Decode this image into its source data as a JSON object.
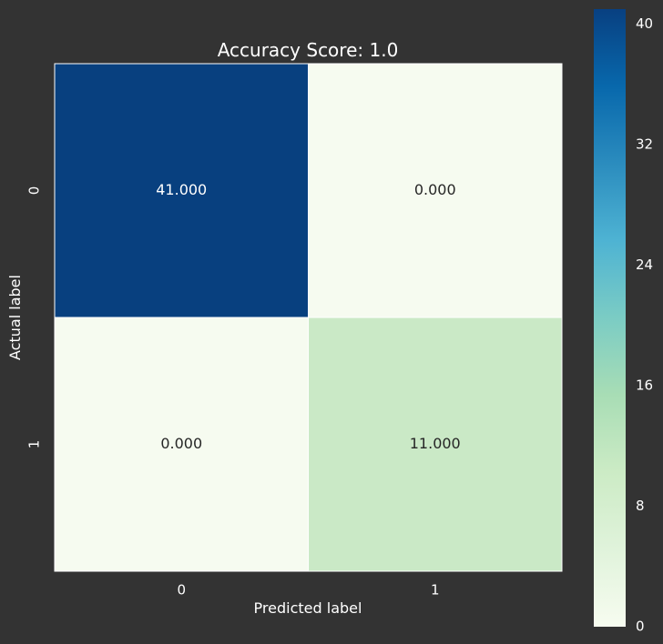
{
  "chart_data": {
    "type": "heatmap",
    "title": "Accuracy Score: 1.0",
    "xlabel": "Predicted label",
    "ylabel": "Actual label",
    "x_categories": [
      "0",
      "1"
    ],
    "y_categories": [
      "0",
      "1"
    ],
    "values": [
      [
        41,
        0
      ],
      [
        0,
        11
      ]
    ],
    "cell_labels": [
      [
        "41.000",
        "0.000"
      ],
      [
        "0.000",
        "11.000"
      ]
    ],
    "colorbar": {
      "min": 0,
      "max": 41,
      "ticks": [
        0,
        8,
        16,
        24,
        32,
        40
      ],
      "tick_labels": [
        "0",
        "8",
        "16",
        "24",
        "32",
        "40"
      ],
      "colormap": "GnBu"
    },
    "cell_colors": [
      [
        "#08407F",
        "#F6FBF0"
      ],
      [
        "#F6FBF0",
        "#CAE9C6"
      ]
    ]
  },
  "colors": {
    "background": "#333333",
    "text": "#FFFFFF",
    "cell_text_dark": "#262626",
    "cell_text_light": "#FFFFFF",
    "grid_line": "#FFFFFF"
  }
}
